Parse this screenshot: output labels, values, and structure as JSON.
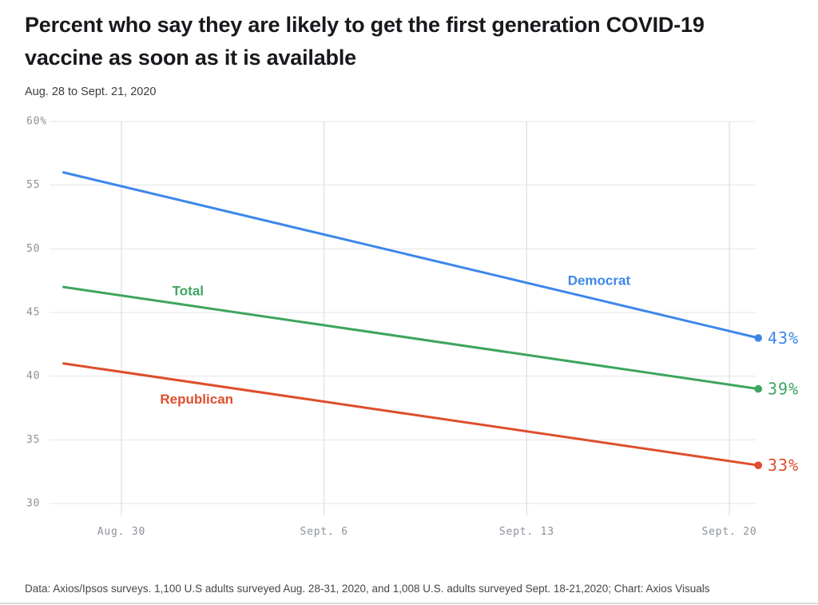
{
  "header": {
    "title_lines": [
      "Percent who say they are likely to get the first generation COVID-19",
      "vaccine as soon as it is available"
    ],
    "subtitle": "Aug. 28 to Sept. 21, 2020"
  },
  "footer": {
    "source": "Data: Axios/Ipsos surveys. 1,100 U.S adults surveyed Aug. 28-31, 2020, and 1,008 U.S. adults surveyed Sept. 18-21,2020; Chart: Axios Visuals"
  },
  "chart_data": {
    "type": "line",
    "title": "Percent who say they are likely to get the first generation COVID-19 vaccine as soon as it is available",
    "date_range": "Aug. 28 to Sept. 21, 2020",
    "grid": true,
    "x_axis": {
      "start_date": "Aug. 28, 2020",
      "end_date": "Sept. 21, 2020",
      "range_days": [
        0,
        24
      ],
      "tick_labels": [
        "Aug. 30",
        "Sept. 6",
        "Sept. 13",
        "Sept. 20"
      ],
      "tick_days": [
        2,
        9,
        16,
        23
      ]
    },
    "y_axis": {
      "unit": "percent",
      "range": [
        30,
        60
      ],
      "tick_labels": [
        "60%",
        "55",
        "50",
        "45",
        "40",
        "35",
        "30"
      ],
      "tick_values": [
        60,
        55,
        50,
        45,
        40,
        35,
        30
      ]
    },
    "series": [
      {
        "name": "Democrat",
        "color": "#3d87ea",
        "points": [
          {
            "day": 0,
            "value": 56
          },
          {
            "day": 24,
            "value": 43
          }
        ],
        "end_label": "43%",
        "label_pos": {
          "day": 18.5,
          "value": 47.5
        }
      },
      {
        "name": "Total",
        "color": "#3ea55e",
        "points": [
          {
            "day": 0,
            "value": 47
          },
          {
            "day": 24,
            "value": 39
          }
        ],
        "end_label": "39%",
        "label_pos": {
          "day": 4.3,
          "value": 46.7
        }
      },
      {
        "name": "Republican",
        "color": "#de4e2c",
        "points": [
          {
            "day": 0,
            "value": 41
          },
          {
            "day": 24,
            "value": 33
          }
        ],
        "end_label": "33%",
        "label_pos": {
          "day": 4.6,
          "value": 38.2
        }
      }
    ]
  }
}
